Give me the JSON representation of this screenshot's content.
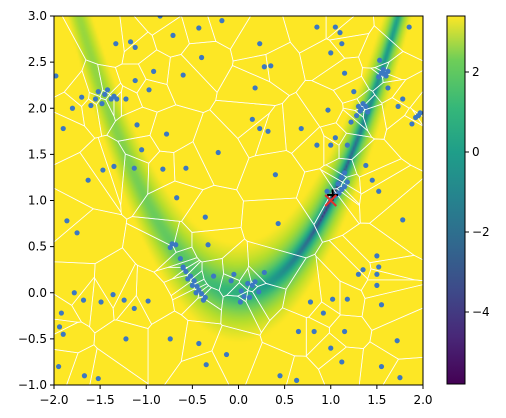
{
  "chart_data": {
    "type": "heatmap",
    "title": "",
    "xlabel": "",
    "ylabel": "",
    "xlim": [
      -2.0,
      2.0
    ],
    "ylim": [
      -1.0,
      3.0
    ],
    "x_ticks": [
      -2.0,
      -1.5,
      -1.0,
      -0.5,
      0.0,
      0.5,
      1.0,
      1.5,
      2.0
    ],
    "x_tick_labels": [
      "−2.0",
      "−1.5",
      "−1.0",
      "−0.5",
      "0.0",
      "0.5",
      "1.0",
      "1.5",
      "2.0"
    ],
    "y_ticks": [
      -1.0,
      -0.5,
      0.0,
      0.5,
      1.0,
      1.5,
      2.0,
      2.5,
      3.0
    ],
    "y_tick_labels": [
      "−1.0",
      "−0.5",
      "0.0",
      "0.5",
      "1.0",
      "1.5",
      "2.0",
      "2.5",
      "3.0"
    ],
    "colormap": "viridis",
    "colorbar": {
      "range": [
        -5.8,
        3.4
      ],
      "ticks": [
        2,
        0,
        -2,
        -4
      ],
      "tick_labels": [
        "2",
        "0",
        "−2",
        "−4"
      ]
    },
    "field": {
      "description_free": true,
      "valley_curve": "y = x^2",
      "min_value": -5.8,
      "max_value": 3.4
    },
    "grid": false,
    "legend": "none",
    "voronoi_edge_color": "#ffffff",
    "sample_point_color": "#3b78c2",
    "markers": [
      {
        "symbol": "+",
        "x": 1.02,
        "y": 1.06,
        "color": "#000000"
      },
      {
        "symbol": "x",
        "x": 1.0,
        "y": 1.0,
        "color": "#e0312d"
      }
    ],
    "sample_points": [
      [
        -1.98,
        2.35
      ],
      [
        -1.9,
        1.78
      ],
      [
        -1.8,
        2.0
      ],
      [
        -1.7,
        2.12
      ],
      [
        -1.6,
        2.03
      ],
      [
        -1.52,
        2.18
      ],
      [
        -1.45,
        2.15
      ],
      [
        -1.38,
        2.1
      ],
      [
        -1.42,
        2.2
      ],
      [
        -1.35,
        2.13
      ],
      [
        -1.55,
        2.1
      ],
      [
        -1.48,
        2.05
      ],
      [
        -1.32,
        2.1
      ],
      [
        -1.22,
        2.1
      ],
      [
        -1.17,
        2.72
      ],
      [
        -1.12,
        2.66
      ],
      [
        -1.33,
        2.7
      ],
      [
        -1.12,
        2.3
      ],
      [
        -1.1,
        1.82
      ],
      [
        -1.05,
        1.55
      ],
      [
        -1.13,
        1.35
      ],
      [
        -1.35,
        1.37
      ],
      [
        -1.47,
        1.33
      ],
      [
        -1.63,
        1.22
      ],
      [
        -1.86,
        0.78
      ],
      [
        -1.75,
        0.65
      ],
      [
        -1.78,
        0.0
      ],
      [
        -1.68,
        -0.08
      ],
      [
        -1.49,
        -0.1
      ],
      [
        -1.36,
        -0.02
      ],
      [
        -1.24,
        -0.08
      ],
      [
        -1.13,
        -0.17
      ],
      [
        -0.98,
        -0.09
      ],
      [
        -1.22,
        -0.5
      ],
      [
        -1.92,
        -0.22
      ],
      [
        -1.94,
        -0.37
      ],
      [
        -1.9,
        -0.45
      ],
      [
        -1.95,
        -0.8
      ],
      [
        -1.67,
        -0.9
      ],
      [
        -1.52,
        -0.93
      ],
      [
        -0.97,
        2.2
      ],
      [
        -0.92,
        2.4
      ],
      [
        -0.85,
        3.0
      ],
      [
        -0.71,
        2.79
      ],
      [
        -0.43,
        2.87
      ],
      [
        -0.18,
        2.95
      ],
      [
        -0.4,
        2.55
      ],
      [
        -0.6,
        2.36
      ],
      [
        -0.78,
        1.72
      ],
      [
        -0.57,
        1.35
      ],
      [
        -0.82,
        1.34
      ],
      [
        -0.67,
        1.03
      ],
      [
        -0.33,
        0.52
      ],
      [
        -0.22,
        1.52
      ],
      [
        -0.36,
        0.82
      ],
      [
        -0.72,
        0.53
      ],
      [
        -0.74,
        0.49
      ],
      [
        -0.68,
        0.52
      ],
      [
        -0.63,
        0.37
      ],
      [
        -0.6,
        0.28
      ],
      [
        -0.57,
        0.23
      ],
      [
        -0.52,
        0.18
      ],
      [
        -0.48,
        0.13
      ],
      [
        -0.45,
        0.07
      ],
      [
        -0.43,
        0.03
      ],
      [
        -0.4,
        -0.01
      ],
      [
        -0.36,
        -0.05
      ],
      [
        -0.55,
        0.15
      ],
      [
        -0.5,
        0.08
      ],
      [
        -0.46,
        0.0
      ],
      [
        -0.38,
        -0.08
      ],
      [
        -0.27,
        0.18
      ],
      [
        -0.6,
        0.27
      ],
      [
        -0.74,
        -0.5
      ],
      [
        -0.43,
        -0.55
      ],
      [
        -0.35,
        -0.78
      ],
      [
        -0.13,
        -0.67
      ],
      [
        -0.08,
        0.13
      ],
      [
        -0.05,
        0.2
      ],
      [
        0.03,
        0.02
      ],
      [
        0.06,
        -0.04
      ],
      [
        0.12,
        -0.05
      ],
      [
        0.15,
        0.08
      ],
      [
        0.18,
        0.12
      ],
      [
        0.22,
        0.01
      ],
      [
        0.1,
        0.1
      ],
      [
        0.02,
        -0.1
      ],
      [
        0.28,
        0.22
      ],
      [
        0.18,
        2.22
      ],
      [
        0.28,
        2.45
      ],
      [
        0.35,
        2.46
      ],
      [
        0.23,
        2.7
      ],
      [
        0.15,
        1.88
      ],
      [
        0.23,
        1.78
      ],
      [
        0.32,
        1.75
      ],
      [
        0.43,
        0.75
      ],
      [
        0.4,
        1.28
      ],
      [
        0.85,
        2.88
      ],
      [
        1.05,
        2.88
      ],
      [
        1.1,
        2.82
      ],
      [
        1.12,
        2.7
      ],
      [
        1.0,
        2.6
      ],
      [
        1.15,
        2.38
      ],
      [
        1.25,
        2.18
      ],
      [
        0.97,
        1.98
      ],
      [
        1.05,
        1.68
      ],
      [
        1.0,
        1.6
      ],
      [
        0.85,
        1.6
      ],
      [
        0.68,
        1.78
      ],
      [
        1.3,
        2.02
      ],
      [
        1.32,
        1.97
      ],
      [
        1.35,
        2.05
      ],
      [
        1.33,
        1.99
      ],
      [
        1.38,
        2.02
      ],
      [
        1.4,
        1.96
      ],
      [
        1.52,
        2.34
      ],
      [
        1.55,
        2.38
      ],
      [
        1.57,
        2.42
      ],
      [
        1.58,
        2.37
      ],
      [
        1.6,
        2.35
      ],
      [
        1.62,
        2.4
      ],
      [
        1.53,
        2.52
      ],
      [
        1.62,
        2.22
      ],
      [
        1.73,
        2.02
      ],
      [
        1.78,
        2.1
      ],
      [
        1.85,
        2.88
      ],
      [
        1.88,
        1.83
      ],
      [
        1.92,
        1.9
      ],
      [
        1.97,
        1.95
      ],
      [
        1.22,
        1.85
      ],
      [
        1.28,
        1.92
      ],
      [
        1.18,
        1.6
      ],
      [
        1.38,
        1.38
      ],
      [
        1.45,
        1.22
      ],
      [
        1.52,
        1.1
      ],
      [
        1.08,
        1.18
      ],
      [
        1.12,
        1.25
      ],
      [
        1.15,
        1.3
      ],
      [
        1.18,
        1.2
      ],
      [
        1.12,
        1.12
      ],
      [
        1.05,
        1.05
      ],
      [
        1.09,
        1.08
      ],
      [
        1.15,
        1.15
      ],
      [
        0.96,
        1.1
      ],
      [
        1.78,
        0.79
      ],
      [
        1.72,
        -0.52
      ],
      [
        1.55,
        -0.13
      ],
      [
        1.5,
        0.08
      ],
      [
        1.5,
        0.2
      ],
      [
        1.52,
        0.28
      ],
      [
        1.5,
        0.4
      ],
      [
        1.35,
        0.25
      ],
      [
        1.3,
        0.2
      ],
      [
        1.18,
        -0.07
      ],
      [
        1.02,
        -0.07
      ],
      [
        0.78,
        -0.1
      ],
      [
        0.92,
        -0.22
      ],
      [
        0.82,
        -0.42
      ],
      [
        0.65,
        -0.42
      ],
      [
        1.15,
        -0.42
      ],
      [
        1.0,
        -0.6
      ],
      [
        1.12,
        -0.75
      ],
      [
        1.55,
        -0.8
      ],
      [
        1.75,
        -0.92
      ],
      [
        1.95,
        1.92
      ],
      [
        0.63,
        -0.95
      ],
      [
        0.45,
        -0.9
      ]
    ]
  }
}
